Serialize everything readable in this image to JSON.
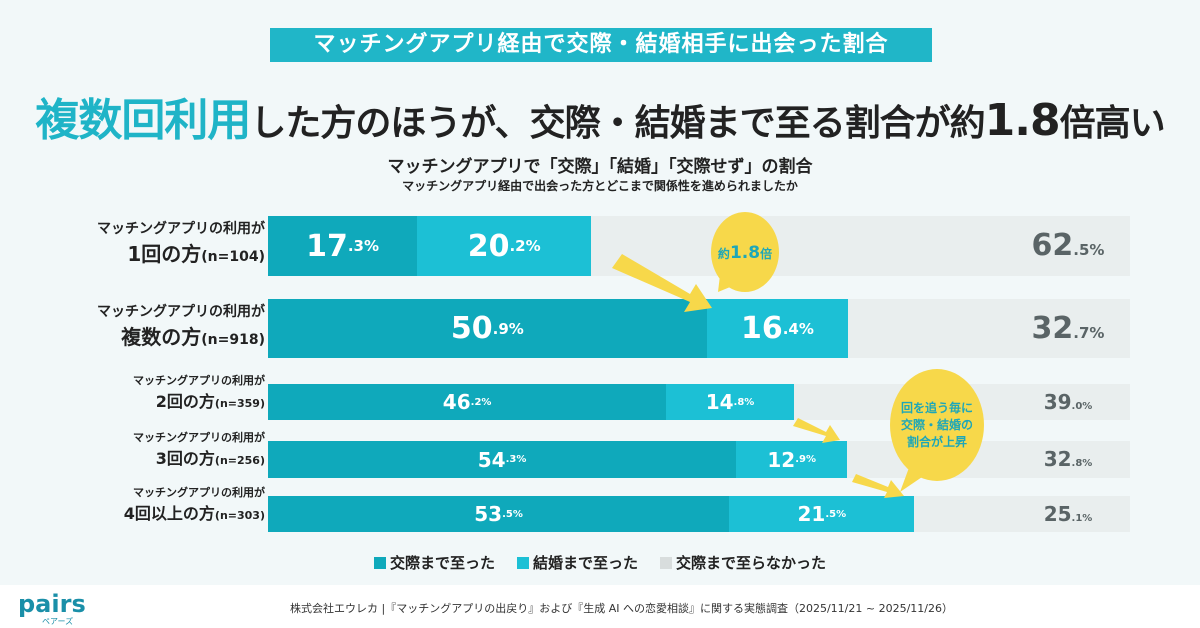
{
  "tag": "マッチングアプリ経由で交際・結婚相手に出会った割合",
  "headline": {
    "highlight": "複数回利用",
    "part1": "した方のほうが、交際・結婚まで至る割合が約",
    "number": "1.8",
    "part2": "倍高い"
  },
  "chart_data": {
    "type": "bar",
    "orientation": "horizontal",
    "stacked": true,
    "title": "マッチングアプリで「交際」「結婚」「交際せず」の割合",
    "subtitle": "マッチングアプリ経由で出会った方とどこまで関係性を進められましたか",
    "categories": [
      {
        "line1": "マッチングアプリの利用が",
        "line2": "1回の方",
        "n": "(n=104)"
      },
      {
        "line1": "マッチングアプリの利用が",
        "line2": "複数の方",
        "n": "(n=918)"
      },
      {
        "line1": "マッチングアプリの利用が",
        "line2": "2回の方",
        "n": "(n=359)"
      },
      {
        "line1": "マッチングアプリの利用が",
        "line2": "3回の方",
        "n": "(n=256)"
      },
      {
        "line1": "マッチングアプリの利用が",
        "line2": "4回以上の方",
        "n": "(n=303)"
      }
    ],
    "series": [
      {
        "name": "交際まで至った",
        "color": "#0fa9bb",
        "values": [
          17.3,
          50.9,
          46.2,
          54.3,
          53.5
        ]
      },
      {
        "name": "結婚まで至った",
        "color": "#1cc0d5",
        "values": [
          20.2,
          16.4,
          14.8,
          12.9,
          21.5
        ]
      },
      {
        "name": "交際まで至らなかった",
        "color": "#e9eeee",
        "values": [
          62.5,
          32.7,
          39.0,
          32.8,
          25.1
        ]
      }
    ],
    "unit": "%",
    "xlim": [
      0,
      100
    ],
    "legend": "bottom",
    "annotations": [
      {
        "text_pre": "約",
        "text_num": "1.8",
        "text_post": "倍"
      },
      {
        "lines": [
          "回を追う毎に",
          "交際・結婚の",
          "割合が上昇"
        ]
      }
    ]
  },
  "footer": {
    "logo": "pairs",
    "logo_sub": "ペアーズ",
    "source": "株式会社エウレカ |『マッチングアプリの出戻り』および『生成 AI への恋愛相談』に関する実態調査（2025/11/21 ~ 2025/11/26）"
  }
}
